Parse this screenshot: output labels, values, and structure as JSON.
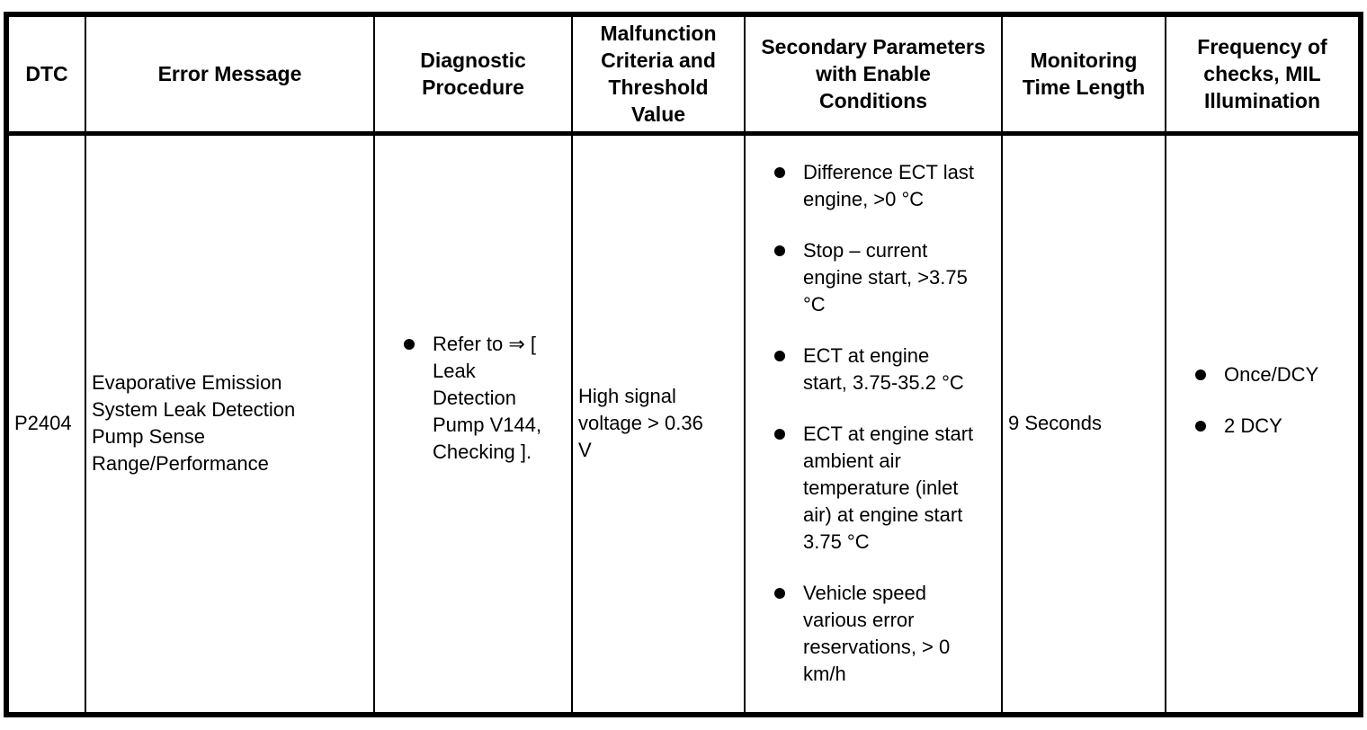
{
  "page": {
    "background": "#ffffff",
    "border_color": "#000000",
    "text_color": "#000000"
  },
  "table": {
    "columns": [
      {
        "id": "dtc",
        "label": "DTC"
      },
      {
        "id": "error_message",
        "label": "Error Message"
      },
      {
        "id": "diagnostic_procedure",
        "label": "Diagnostic\nProcedure"
      },
      {
        "id": "malfunction_criteria",
        "label": "Malfunction\nCriteria and\nThreshold\nValue"
      },
      {
        "id": "secondary_parameters",
        "label": "Secondary Parameters\nwith Enable\nConditions"
      },
      {
        "id": "monitoring_time",
        "label": "Monitoring\nTime Length"
      },
      {
        "id": "frequency",
        "label": "Frequency of\nchecks, MIL\nIllumination"
      }
    ],
    "row": {
      "dtc": "P2404",
      "error_message": "Evaporative Emission\nSystem Leak Detection\nPump Sense\nRange/Performance",
      "diagnostic_procedure": [
        "Refer to ⇒ [\nLeak\nDetection\nPump V144,\nChecking ]."
      ],
      "malfunction_criteria": "High signal\nvoltage > 0.36\nV",
      "secondary_parameters": [
        "Difference ECT last\nengine, >0 °C",
        "Stop – current\nengine start, >3.75\n°C",
        "ECT at engine\nstart, 3.75-35.2 °C",
        "ECT at engine start\nambient air\ntemperature (inlet\nair) at engine start\n3.75 °C",
        "Vehicle speed\nvarious error\nreservations, > 0\nkm/h"
      ],
      "monitoring_time": "9 Seconds",
      "frequency": [
        "Once/DCY",
        "2 DCY"
      ]
    }
  }
}
